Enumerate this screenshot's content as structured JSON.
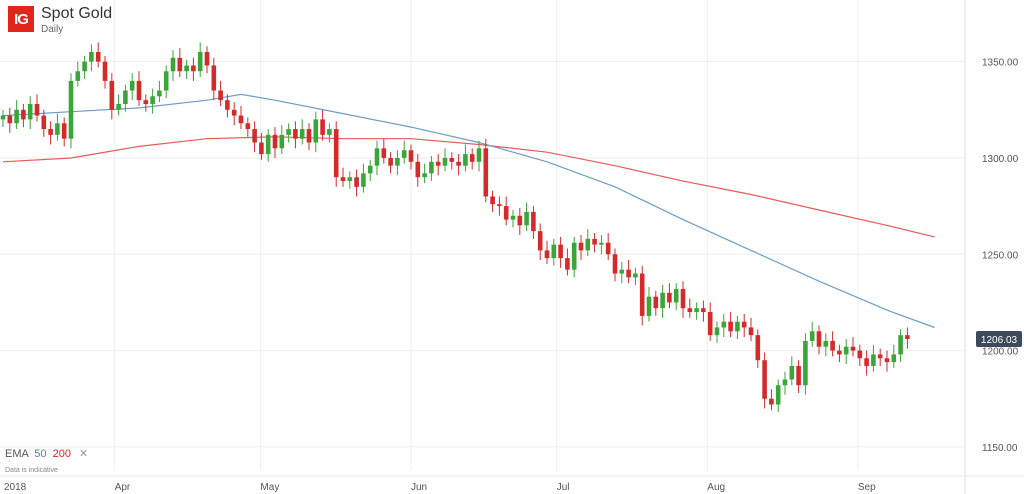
{
  "header": {
    "logo_text": "IG",
    "title": "Spot Gold",
    "subtitle": "Daily"
  },
  "legend": {
    "label": "EMA",
    "ema50": "50",
    "ema200": "200",
    "close": "✕"
  },
  "note": "Data is indicative",
  "colors": {
    "up": "#3aa63a",
    "down": "#d42a2a",
    "ema50": "#6b9dc8",
    "ema200": "#e85a5a",
    "grid": "#eeeeee",
    "price_tag": "#3c4a5c"
  },
  "chart_data": {
    "type": "candlestick",
    "instrument": "Spot Gold",
    "interval": "Daily",
    "y_ticks": [
      1150,
      1200,
      1250,
      1300,
      1350
    ],
    "y_tick_labels": [
      "1150.00",
      "1200.00",
      "1250.00",
      "1300.00",
      "1350.00"
    ],
    "ylim": [
      1138,
      1382
    ],
    "x_tick_labels": [
      "2018",
      "Apr",
      "May",
      "Jun",
      "Jul",
      "Aug",
      "Sep"
    ],
    "x_tick_dates": [
      "2018-03-09",
      "2018-04-01",
      "2018-05-01",
      "2018-06-01",
      "2018-07-01",
      "2018-08-01",
      "2018-09-01"
    ],
    "last_price": "1206.03",
    "candles": [
      [
        1320,
        1322
      ],
      [
        1322,
        1318
      ],
      [
        1318,
        1325
      ],
      [
        1325,
        1320
      ],
      [
        1320,
        1328
      ],
      [
        1328,
        1322
      ],
      [
        1322,
        1315
      ],
      [
        1315,
        1312
      ],
      [
        1312,
        1318
      ],
      [
        1318,
        1310
      ],
      [
        1310,
        1340
      ],
      [
        1340,
        1345
      ],
      [
        1345,
        1350
      ],
      [
        1350,
        1355
      ],
      [
        1355,
        1350
      ],
      [
        1350,
        1340
      ],
      [
        1340,
        1325
      ],
      [
        1325,
        1328
      ],
      [
        1328,
        1335
      ],
      [
        1335,
        1340
      ],
      [
        1340,
        1330
      ],
      [
        1330,
        1328
      ],
      [
        1328,
        1332
      ],
      [
        1332,
        1335
      ],
      [
        1335,
        1345
      ],
      [
        1345,
        1352
      ],
      [
        1352,
        1345
      ],
      [
        1345,
        1348
      ],
      [
        1348,
        1345
      ],
      [
        1345,
        1355
      ],
      [
        1355,
        1348
      ],
      [
        1348,
        1335
      ],
      [
        1335,
        1330
      ],
      [
        1330,
        1325
      ],
      [
        1325,
        1322
      ],
      [
        1322,
        1318
      ],
      [
        1318,
        1315
      ],
      [
        1315,
        1308
      ],
      [
        1308,
        1302
      ],
      [
        1302,
        1312
      ],
      [
        1312,
        1305
      ],
      [
        1305,
        1312
      ],
      [
        1312,
        1315
      ],
      [
        1315,
        1310
      ],
      [
        1310,
        1315
      ],
      [
        1315,
        1308
      ],
      [
        1308,
        1320
      ],
      [
        1320,
        1312
      ],
      [
        1312,
        1315
      ],
      [
        1315,
        1290
      ],
      [
        1290,
        1288
      ],
      [
        1288,
        1290
      ],
      [
        1290,
        1285
      ],
      [
        1285,
        1292
      ],
      [
        1292,
        1296
      ],
      [
        1296,
        1305
      ],
      [
        1305,
        1300
      ],
      [
        1300,
        1296
      ],
      [
        1296,
        1300
      ],
      [
        1300,
        1304
      ],
      [
        1304,
        1298
      ],
      [
        1298,
        1290
      ],
      [
        1290,
        1292
      ],
      [
        1292,
        1298
      ],
      [
        1298,
        1296
      ],
      [
        1296,
        1300
      ],
      [
        1300,
        1298
      ],
      [
        1298,
        1296
      ],
      [
        1296,
        1302
      ],
      [
        1302,
        1298
      ],
      [
        1298,
        1305
      ],
      [
        1305,
        1280
      ],
      [
        1280,
        1276
      ],
      [
        1276,
        1275
      ],
      [
        1275,
        1268
      ],
      [
        1268,
        1270
      ],
      [
        1270,
        1265
      ],
      [
        1265,
        1272
      ],
      [
        1272,
        1262
      ],
      [
        1262,
        1252
      ],
      [
        1252,
        1248
      ],
      [
        1248,
        1255
      ],
      [
        1255,
        1248
      ],
      [
        1248,
        1242
      ],
      [
        1242,
        1256
      ],
      [
        1256,
        1252
      ],
      [
        1252,
        1258
      ],
      [
        1258,
        1255
      ],
      [
        1255,
        1256
      ],
      [
        1256,
        1250
      ],
      [
        1250,
        1240
      ],
      [
        1240,
        1242
      ],
      [
        1242,
        1238
      ],
      [
        1238,
        1240
      ],
      [
        1240,
        1218
      ],
      [
        1218,
        1228
      ],
      [
        1228,
        1222
      ],
      [
        1222,
        1230
      ],
      [
        1230,
        1225
      ],
      [
        1225,
        1232
      ],
      [
        1232,
        1222
      ],
      [
        1222,
        1220
      ],
      [
        1220,
        1222
      ],
      [
        1222,
        1220
      ],
      [
        1220,
        1208
      ],
      [
        1208,
        1212
      ],
      [
        1212,
        1215
      ],
      [
        1215,
        1210
      ],
      [
        1210,
        1215
      ],
      [
        1215,
        1212
      ],
      [
        1212,
        1208
      ],
      [
        1208,
        1195
      ],
      [
        1195,
        1175
      ],
      [
        1175,
        1172
      ],
      [
        1172,
        1182
      ],
      [
        1182,
        1185
      ],
      [
        1185,
        1192
      ],
      [
        1192,
        1182
      ],
      [
        1182,
        1205
      ],
      [
        1205,
        1210
      ],
      [
        1210,
        1202
      ],
      [
        1202,
        1205
      ],
      [
        1205,
        1200
      ],
      [
        1200,
        1198
      ],
      [
        1198,
        1202
      ],
      [
        1202,
        1200
      ],
      [
        1200,
        1196
      ],
      [
        1196,
        1192
      ],
      [
        1192,
        1198
      ],
      [
        1198,
        1196
      ],
      [
        1196,
        1194
      ],
      [
        1194,
        1198
      ],
      [
        1198,
        1208
      ],
      [
        1208,
        1206
      ]
    ],
    "ema50": [
      [
        0,
        1322
      ],
      [
        10,
        1324
      ],
      [
        20,
        1326
      ],
      [
        30,
        1330
      ],
      [
        35,
        1333
      ],
      [
        40,
        1330
      ],
      [
        50,
        1323
      ],
      [
        60,
        1316
      ],
      [
        70,
        1308
      ],
      [
        80,
        1298
      ],
      [
        90,
        1285
      ],
      [
        100,
        1268
      ],
      [
        110,
        1252
      ],
      [
        120,
        1236
      ],
      [
        130,
        1221
      ],
      [
        137,
        1212
      ]
    ],
    "ema200": [
      [
        0,
        1298
      ],
      [
        10,
        1300
      ],
      [
        20,
        1306
      ],
      [
        30,
        1310
      ],
      [
        40,
        1311
      ],
      [
        50,
        1310
      ],
      [
        60,
        1310
      ],
      [
        70,
        1307
      ],
      [
        80,
        1303
      ],
      [
        90,
        1296
      ],
      [
        100,
        1288
      ],
      [
        110,
        1281
      ],
      [
        120,
        1273
      ],
      [
        130,
        1265
      ],
      [
        137,
        1259
      ]
    ]
  }
}
